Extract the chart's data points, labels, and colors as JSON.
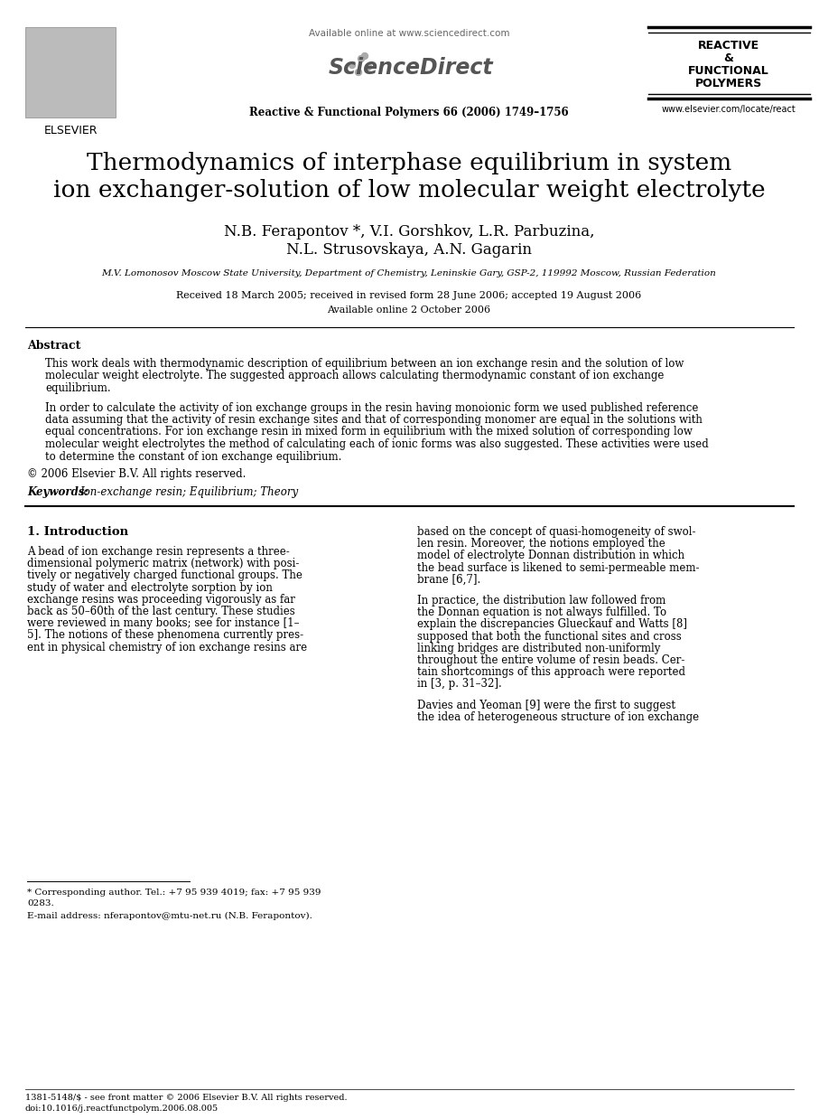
{
  "bg_color": "#ffffff",
  "header_available_online": "Available online at www.sciencedirect.com",
  "header_sciencedirect": "ScienceDirect",
  "header_journal_bold": "Reactive & Functional Polymers 66 (2006) 1749–1756",
  "header_right_line1": "REACTIVE",
  "header_right_line2": "&",
  "header_right_line3": "FUNCTIONAL",
  "header_right_line4": "POLYMERS",
  "header_right_url": "www.elsevier.com/locate/react",
  "elsevier_text": "ELSEVIER",
  "title_line1": "Thermodynamics of interphase equilibrium in system",
  "title_line2": "ion exchanger-solution of low molecular weight electrolyte",
  "authors_line1": "N.B. Ferapontov *, V.I. Gorshkov, L.R. Parbuzina,",
  "authors_line2": "N.L. Strusovskaya, A.N. Gagarin",
  "affiliation": "M.V. Lomonosov Moscow State University, Department of Chemistry, Leninskie Gary, GSP-2, 119992 Moscow, Russian Federation",
  "received": "Received 18 March 2005; received in revised form 28 June 2006; accepted 19 August 2006",
  "available": "Available online 2 October 2006",
  "abstract_title": "Abstract",
  "abstract_p1_lines": [
    "This work deals with thermodynamic description of equilibrium between an ion exchange resin and the solution of low",
    "molecular weight electrolyte. The suggested approach allows calculating thermodynamic constant of ion exchange",
    "equilibrium."
  ],
  "abstract_p2_lines": [
    "In order to calculate the activity of ion exchange groups in the resin having monoionic form we used published reference",
    "data assuming that the activity of resin exchange sites and that of corresponding monomer are equal in the solutions with",
    "equal concentrations. For ion exchange resin in mixed form in equilibrium with the mixed solution of corresponding low",
    "molecular weight electrolytes the method of calculating each of ionic forms was also suggested. These activities were used",
    "to determine the constant of ion exchange equilibrium."
  ],
  "abstract_copyright": "© 2006 Elsevier B.V. All rights reserved.",
  "keywords_label": "Keywords:",
  "keywords": "Ion-exchange resin; Equilibrium; Theory",
  "section_header": "1. Introduction",
  "intro_left_lines": [
    "A bead of ion exchange resin represents a three-",
    "dimensional polymeric matrix (network) with posi-",
    "tively or negatively charged functional groups. The",
    "study of water and electrolyte sorption by ion",
    "exchange resins was proceeding vigorously as far",
    "back as 50–60th of the last century. These studies",
    "were reviewed in many books; see for instance [1–",
    "5]. The notions of these phenomena currently pres-",
    "ent in physical chemistry of ion exchange resins are"
  ],
  "intro_right_p1_lines": [
    "based on the concept of quasi-homogeneity of swol-",
    "len resin. Moreover, the notions employed the",
    "model of electrolyte Donnan distribution in which",
    "the bead surface is likened to semi-permeable mem-",
    "brane [6,7]."
  ],
  "intro_right_p2_lines": [
    "In practice, the distribution law followed from",
    "the Donnan equation is not always fulfilled. To",
    "explain the discrepancies Glueckauf and Watts [8]",
    "supposed that both the functional sites and cross",
    "linking bridges are distributed non-uniformly",
    "throughout the entire volume of resin beads. Cer-",
    "tain shortcomings of this approach were reported",
    "in [3, p. 31–32]."
  ],
  "intro_right_p3_lines": [
    "Davies and Yeoman [9] were the first to suggest",
    "the idea of heterogeneous structure of ion exchange"
  ],
  "footnote_star_lines": [
    "* Corresponding author. Tel.: +7 95 939 4019; fax: +7 95 939",
    "0283."
  ],
  "footnote_email": "E-mail address: nferapontov@mtu-net.ru (N.B. Ferapontov).",
  "footer_line1": "1381-5148/$ - see front matter © 2006 Elsevier B.V. All rights reserved.",
  "footer_line2": "doi:10.1016/j.reactfunctpolym.2006.08.005"
}
